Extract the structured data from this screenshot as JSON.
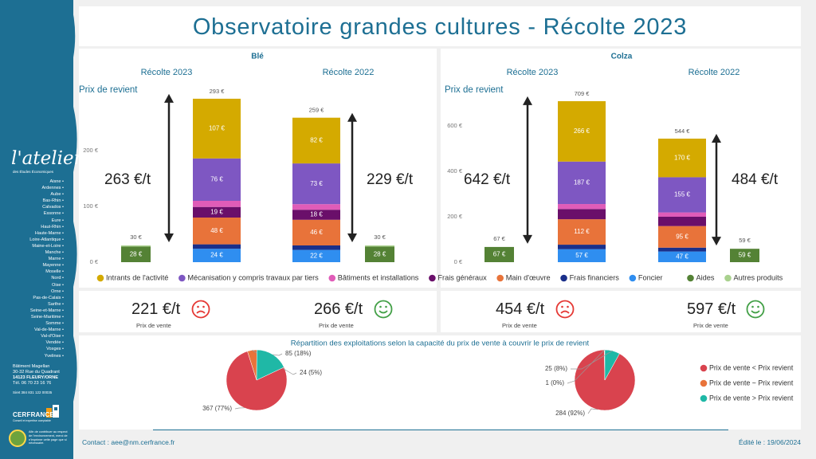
{
  "page": {
    "title": "Observatoire grandes cultures - Récolte 2023",
    "contact": "Contact : aee@nm.cerfrance.fr",
    "edited": "Édité le : 19/06/2024"
  },
  "sidebar": {
    "logo": "l'atelier",
    "logo_sub": "des Études Économiques",
    "departments": [
      "Aisne",
      "Ardennes",
      "Aube",
      "Bas-Rhin",
      "Calvados",
      "Essonne",
      "Eure",
      "Haut-Rhin",
      "Haute-Marne",
      "Loire-Atlantique",
      "Maine-et-Loire",
      "Manche",
      "Marne",
      "Mayenne",
      "Moselle",
      "Nord",
      "Oise",
      "Orne",
      "Pas-de-Calais",
      "Sarthe",
      "Seine-et-Marne",
      "Seine-Maritime",
      "Somme",
      "Val-de-Marne",
      "Val-d'Oise",
      "Vendée",
      "Vosges",
      "Yvelines"
    ],
    "address": [
      "Bâtiment Magellan",
      "30-32 Rue du Quadrant",
      "14123 FLEURY/ORNE",
      "Tél. 06 70 23 16 76"
    ],
    "siret": "Siret 384 831 122 00035",
    "brand": "CERFRANCE",
    "brand_sub": "Conseil et expertise comptable",
    "eco_note": "Afin de contribuer au respect de l'environnement, merci de n'imprimer cette page que si nécessaire."
  },
  "legend": {
    "items": [
      {
        "label": "Intrants de l'activité",
        "color": "#d4aa00"
      },
      {
        "label": "Mécanisation y compris travaux par tiers",
        "color": "#7e57c2"
      },
      {
        "label": "Bâtiments et installations",
        "color": "#e05cb8"
      },
      {
        "label": "Frais généraux",
        "color": "#6a0f6a"
      },
      {
        "label": "Main d'œuvre",
        "color": "#e8733a"
      },
      {
        "label": "Frais financiers",
        "color": "#1a2f8a"
      },
      {
        "label": "Foncier",
        "color": "#2f8ef0"
      },
      {
        "label": "Aides",
        "color": "#548235"
      },
      {
        "label": "Autres produits",
        "color": "#a9d18e"
      }
    ]
  },
  "kpis": [
    {
      "value": "221 €/t",
      "label": "Prix de vente",
      "mood": "sad"
    },
    {
      "value": "266 €/t",
      "label": "Prix de vente",
      "mood": "happy"
    },
    {
      "value": "454 €/t",
      "label": "Prix de vente",
      "mood": "sad"
    },
    {
      "value": "597 €/t",
      "label": "Prix de vente",
      "mood": "happy"
    }
  ],
  "pie_section": {
    "title": "Répartition des exploitations selon la capacité du prix de vente à couvrir le prix de revient",
    "legend": [
      {
        "label": "Prix de vente < Prix revient",
        "color": "#d9434e"
      },
      {
        "label": "Prix de vente ~ Prix revient",
        "color": "#e8733a"
      },
      {
        "label": "Prix de vente > Prix revient",
        "color": "#1fb8a6"
      }
    ]
  },
  "chart_data": [
    {
      "type": "bar",
      "title": "Blé",
      "ylabel": "Prix de revient",
      "ylim": [
        0,
        300
      ],
      "yticks": [
        "0 €",
        "100 €",
        "200 €"
      ],
      "groups": [
        {
          "label": "Récolte 2023",
          "price_label": "263 €/t",
          "cost_total_label": "293 €",
          "cost_segments": [
            {
              "name": "Foncier",
              "value": 24,
              "label": "24 €"
            },
            {
              "name": "Frais financiers",
              "value": 8,
              "label": ""
            },
            {
              "name": "Main d'œuvre",
              "value": 48,
              "label": "48 €"
            },
            {
              "name": "Frais généraux",
              "value": 19,
              "label": "19 €"
            },
            {
              "name": "Bâtiments et installations",
              "value": 11,
              "label": ""
            },
            {
              "name": "Mécanisation y compris travaux par tiers",
              "value": 76,
              "label": "76 €"
            },
            {
              "name": "Intrants de l'activité",
              "value": 107,
              "label": "107 €"
            }
          ],
          "aid_total_label": "30 €",
          "aid_segments": [
            {
              "name": "Aides",
              "value": 28,
              "label": "28 €"
            },
            {
              "name": "Autres produits",
              "value": 2,
              "label": ""
            }
          ]
        },
        {
          "label": "Récolte 2022",
          "price_label": "229 €/t",
          "cost_total_label": "259 €",
          "cost_segments": [
            {
              "name": "Foncier",
              "value": 22,
              "label": "22 €"
            },
            {
              "name": "Frais financiers",
              "value": 8,
              "label": ""
            },
            {
              "name": "Main d'œuvre",
              "value": 46,
              "label": "46 €"
            },
            {
              "name": "Frais généraux",
              "value": 18,
              "label": "18 €"
            },
            {
              "name": "Bâtiments et installations",
              "value": 10,
              "label": ""
            },
            {
              "name": "Mécanisation y compris travaux par tiers",
              "value": 73,
              "label": "73 €"
            },
            {
              "name": "Intrants de l'activité",
              "value": 82,
              "label": "82 €"
            }
          ],
          "aid_total_label": "30 €",
          "aid_segments": [
            {
              "name": "Aides",
              "value": 28,
              "label": "28 €"
            },
            {
              "name": "Autres produits",
              "value": 2,
              "label": ""
            }
          ]
        }
      ]
    },
    {
      "type": "bar",
      "title": "Colza",
      "ylabel": "Prix de revient",
      "ylim": [
        0,
        720
      ],
      "yticks": [
        "0 €",
        "200 €",
        "400 €",
        "600 €"
      ],
      "groups": [
        {
          "label": "Récolte 2023",
          "price_label": "642 €/t",
          "cost_total_label": "709 €",
          "cost_segments": [
            {
              "name": "Foncier",
              "value": 57,
              "label": "57 €"
            },
            {
              "name": "Frais financiers",
              "value": 20,
              "label": ""
            },
            {
              "name": "Main d'œuvre",
              "value": 112,
              "label": "112 €"
            },
            {
              "name": "Frais généraux",
              "value": 45,
              "label": ""
            },
            {
              "name": "Bâtiments et installations",
              "value": 22,
              "label": ""
            },
            {
              "name": "Mécanisation y compris travaux par tiers",
              "value": 187,
              "label": "187 €"
            },
            {
              "name": "Intrants de l'activité",
              "value": 266,
              "label": "266 €"
            }
          ],
          "aid_total_label": "67 €",
          "aid_segments": [
            {
              "name": "Aides",
              "value": 67,
              "label": "67 €"
            }
          ]
        },
        {
          "label": "Récolte 2022",
          "price_label": "484 €/t",
          "cost_total_label": "544 €",
          "cost_segments": [
            {
              "name": "Foncier",
              "value": 47,
              "label": "47 €"
            },
            {
              "name": "Frais financiers",
              "value": 17,
              "label": ""
            },
            {
              "name": "Main d'œuvre",
              "value": 95,
              "label": "95 €"
            },
            {
              "name": "Frais généraux",
              "value": 41,
              "label": ""
            },
            {
              "name": "Bâtiments et installations",
              "value": 19,
              "label": ""
            },
            {
              "name": "Mécanisation y compris travaux par tiers",
              "value": 155,
              "label": "155 €"
            },
            {
              "name": "Intrants de l'activité",
              "value": 170,
              "label": "170 €"
            }
          ],
          "aid_total_label": "59 €",
          "aid_segments": [
            {
              "name": "Aides",
              "value": 59,
              "label": "59 €"
            }
          ]
        }
      ]
    },
    {
      "type": "pie",
      "slices": [
        {
          "name": "Prix de vente < Prix revient",
          "value": 367,
          "label": "367 (77%)"
        },
        {
          "name": "Prix de vente ~ Prix revient",
          "value": 24,
          "label": "24 (5%)"
        },
        {
          "name": "Prix de vente > Prix revient",
          "value": 85,
          "label": "85 (18%)"
        }
      ]
    },
    {
      "type": "pie",
      "slices": [
        {
          "name": "Prix de vente < Prix revient",
          "value": 284,
          "label": "284 (92%)"
        },
        {
          "name": "Prix de vente ~ Prix revient",
          "value": 1,
          "label": "1 (0%)"
        },
        {
          "name": "Prix de vente > Prix revient",
          "value": 25,
          "label": "25 (8%)"
        }
      ]
    }
  ]
}
